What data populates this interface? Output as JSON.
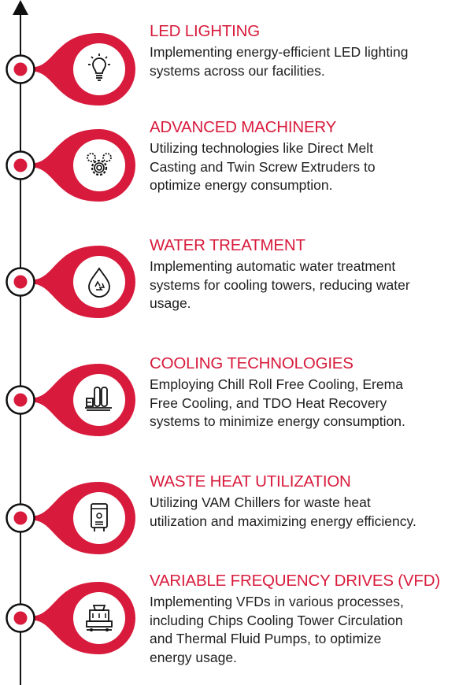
{
  "colors": {
    "accent": "#d81b3c",
    "line": "#111111",
    "text": "#1e1e1e"
  },
  "items": [
    {
      "title": "LED LIGHTING",
      "lines": [
        "Implementing energy-efficient LED lighting",
        "systems across our facilities."
      ],
      "icon": "lightbulb-icon"
    },
    {
      "title": "ADVANCED MACHINERY",
      "lines": [
        "Utilizing technologies like Direct Melt",
        "Casting and Twin Screw Extruders to",
        "optimize energy consumption."
      ],
      "icon": "gears-icon"
    },
    {
      "title": "WATER TREATMENT",
      "lines": [
        "Implementing automatic water treatment",
        "systems for cooling towers, reducing water",
        "usage."
      ],
      "icon": "recycle-drop-icon"
    },
    {
      "title": "COOLING TECHNOLOGIES",
      "lines": [
        "Employing Chill Roll Free Cooling, Erema",
        "Free Cooling, and TDO Heat Recovery",
        "systems to minimize energy consumption."
      ],
      "icon": "cooling-tanks-icon"
    },
    {
      "title": "WASTE HEAT UTILIZATION",
      "lines": [
        "Utilizing VAM Chillers for waste heat",
        "utilization and maximizing energy efficiency."
      ],
      "icon": "chiller-unit-icon"
    },
    {
      "title": "VARIABLE FREQUENCY DRIVES (VFD)",
      "lines": [
        "Implementing VFDs in various processes,",
        "including Chips Cooling Tower Circulation",
        "and Thermal Fluid Pumps, to optimize",
        "energy usage."
      ],
      "icon": "cooling-tower-icon"
    }
  ]
}
